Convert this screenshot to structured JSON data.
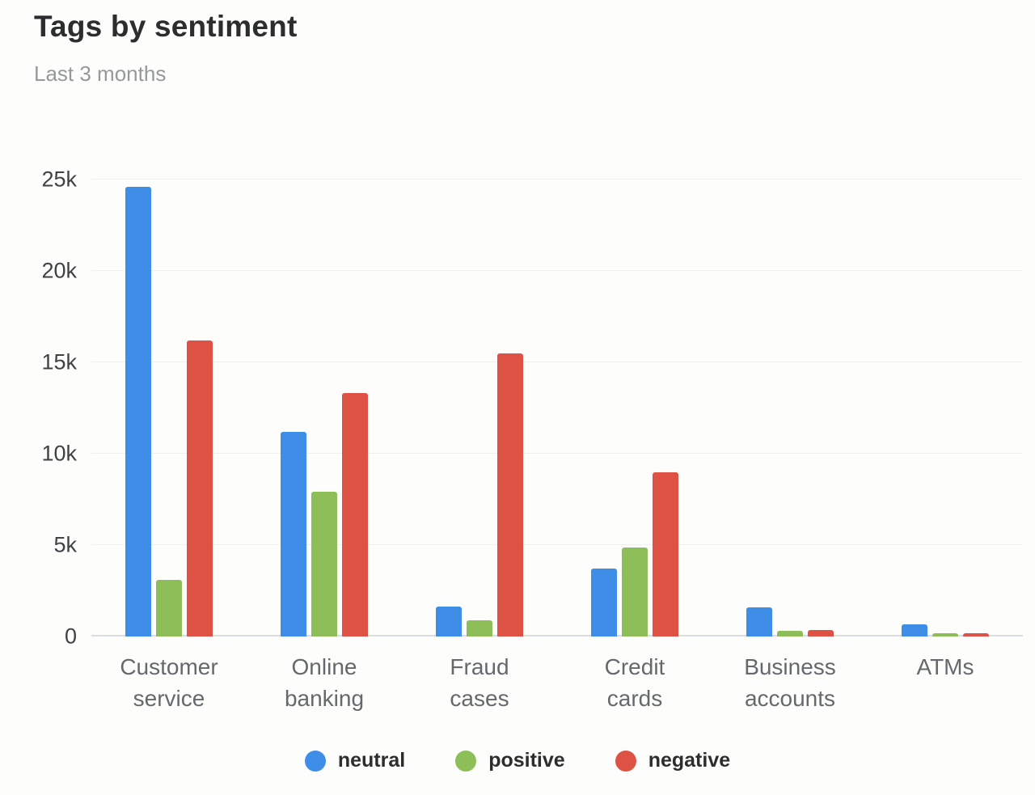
{
  "header": {
    "title": "Tags by sentiment",
    "subtitle": "Last 3 months"
  },
  "colors": {
    "neutral": "#3e8ee8",
    "positive": "#8ebe57",
    "negative": "#de5145",
    "gridline": "#efefed",
    "baseline": "#d9dde2",
    "title_text": "#2b2d2e",
    "subtitle_text": "#96999c",
    "axis_text": "#65696d"
  },
  "chart_data": {
    "type": "bar",
    "title": "Tags by sentiment",
    "subtitle": "Last 3 months",
    "categories": [
      "Customer service",
      "Online banking",
      "Fraud cases",
      "Credit cards",
      "Business accounts",
      "ATMs"
    ],
    "xlabels": [
      "Customer\nservice",
      "Online\nbanking",
      "Fraud\ncases",
      "Credit\ncards",
      "Business\naccounts",
      "ATMs"
    ],
    "series": [
      {
        "name": "neutral",
        "color": "#3e8ee8",
        "values": [
          24600,
          11200,
          1650,
          3700,
          1600,
          650
        ]
      },
      {
        "name": "positive",
        "color": "#8ebe57",
        "values": [
          3100,
          7900,
          900,
          4850,
          300,
          160
        ]
      },
      {
        "name": "negative",
        "color": "#de5145",
        "values": [
          16200,
          13300,
          15500,
          9000,
          350,
          190
        ]
      }
    ],
    "ylim": [
      0,
      25000
    ],
    "yticks": [
      {
        "value": 0,
        "label": "0"
      },
      {
        "value": 5000,
        "label": "5k"
      },
      {
        "value": 10000,
        "label": "10k"
      },
      {
        "value": 15000,
        "label": "15k"
      },
      {
        "value": 20000,
        "label": "20k"
      },
      {
        "value": 25000,
        "label": "25k"
      }
    ],
    "grid": "horizontal",
    "legend_position": "bottom",
    "legend": [
      "neutral",
      "positive",
      "negative"
    ]
  }
}
